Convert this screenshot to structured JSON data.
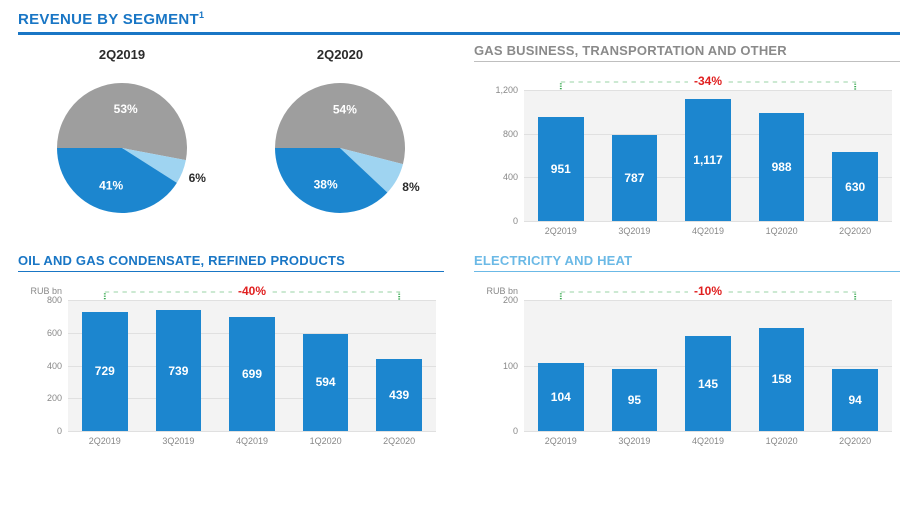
{
  "title": "REVENUE BY SEGMENT",
  "title_sup": "1",
  "colors": {
    "grey": "#9e9e9e",
    "blue": "#1c86cf",
    "light_blue": "#9fd4f1",
    "delta": "#e02020",
    "plot_bg": "#f3f3f3",
    "grid": "#e0e0e0",
    "bracket": "#36a84f"
  },
  "pies": [
    {
      "title": "2Q2019",
      "slices": [
        {
          "label": "53%",
          "value": 53,
          "color": "#9e9e9e"
        },
        {
          "label": "6%",
          "value": 6,
          "color": "#9fd4f1"
        },
        {
          "label": "41%",
          "value": 41,
          "color": "#1c86cf"
        }
      ]
    },
    {
      "title": "2Q2020",
      "slices": [
        {
          "label": "54%",
          "value": 54,
          "color": "#9e9e9e"
        },
        {
          "label": "8%",
          "value": 8,
          "color": "#9fd4f1"
        },
        {
          "label": "38%",
          "value": 38,
          "color": "#1c86cf"
        }
      ]
    }
  ],
  "bar_charts": {
    "gas": {
      "title": "GAS BUSINESS, TRANSPORTATION AND OTHER",
      "title_class": "grey",
      "delta": "-34%",
      "y_unit": "",
      "y_max": 1200,
      "y_step": 400,
      "bars": [
        {
          "label": "2Q2019",
          "value": 951
        },
        {
          "label": "3Q2019",
          "value": 787
        },
        {
          "label": "4Q2019",
          "value": 1117,
          "display": "1,117"
        },
        {
          "label": "1Q2020",
          "value": 988
        },
        {
          "label": "2Q2020",
          "value": 630
        }
      ]
    },
    "oil": {
      "title": "OIL AND GAS CONDENSATE, REFINED PRODUCTS",
      "title_class": "blue",
      "delta": "-40%",
      "y_unit": "RUB bn",
      "y_max": 800,
      "y_step": 200,
      "bars": [
        {
          "label": "2Q2019",
          "value": 729
        },
        {
          "label": "3Q2019",
          "value": 739
        },
        {
          "label": "4Q2019",
          "value": 699
        },
        {
          "label": "1Q2020",
          "value": 594
        },
        {
          "label": "2Q2020",
          "value": 439
        }
      ]
    },
    "elec": {
      "title": "ELECTRICITY AND HEAT",
      "title_class": "light",
      "delta": "-10%",
      "y_unit": "RUB bn",
      "y_max": 200,
      "y_step": 100,
      "bars": [
        {
          "label": "2Q2019",
          "value": 104
        },
        {
          "label": "3Q2019",
          "value": 95
        },
        {
          "label": "4Q2019",
          "value": 145
        },
        {
          "label": "1Q2020",
          "value": 158
        },
        {
          "label": "2Q2020",
          "value": 94
        }
      ]
    }
  }
}
